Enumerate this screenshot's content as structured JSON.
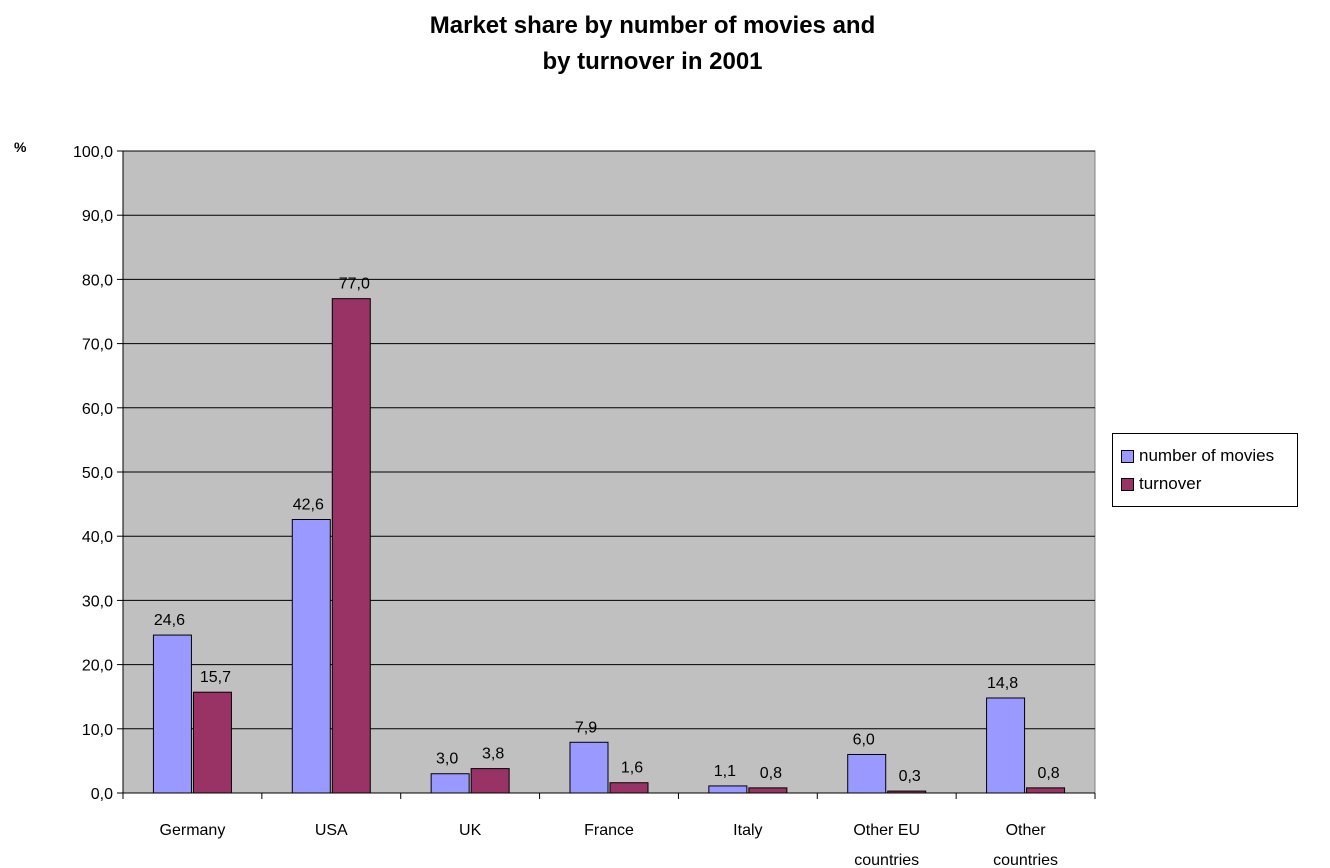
{
  "chart_data": {
    "type": "bar",
    "title_line1": "Market share by number of movies and",
    "title_line2": "by turnover in 2001",
    "ylabel": "%",
    "ylim": [
      0,
      100
    ],
    "yticks": [
      "0,0",
      "10,0",
      "20,0",
      "30,0",
      "40,0",
      "50,0",
      "60,0",
      "70,0",
      "80,0",
      "90,0",
      "100,0"
    ],
    "grid": true,
    "legend_position": "right",
    "categories": [
      [
        "Germany"
      ],
      [
        "USA"
      ],
      [
        "UK"
      ],
      [
        "France"
      ],
      [
        "Italy"
      ],
      [
        "Other EU",
        "countries"
      ],
      [
        "Other",
        "countries"
      ]
    ],
    "series": [
      {
        "name": "number of movies",
        "color": "#9999ff",
        "values": [
          24.6,
          42.6,
          3.0,
          7.9,
          1.1,
          6.0,
          14.8
        ],
        "labels": [
          "24,6",
          "42,6",
          "3,0",
          "7,9",
          "1,1",
          "6,0",
          "14,8"
        ]
      },
      {
        "name": "turnover",
        "color": "#993366",
        "values": [
          15.7,
          77.0,
          3.8,
          1.6,
          0.8,
          0.3,
          0.8
        ],
        "labels": [
          "15,7",
          "77,0",
          "3,8",
          "1,6",
          "0,8",
          "0,3",
          "0,8"
        ]
      }
    ],
    "plot_background": "#c0c0c0"
  }
}
